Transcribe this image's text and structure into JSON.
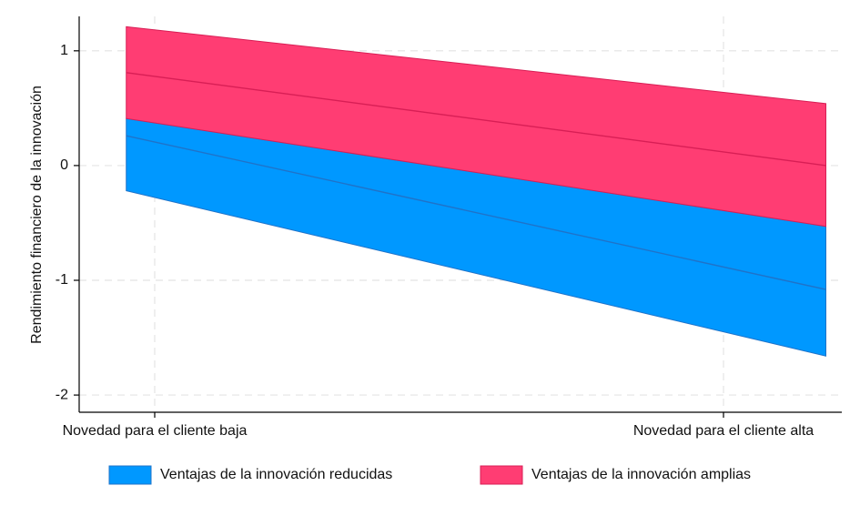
{
  "chart_data": {
    "type": "area",
    "xlabel": "",
    "ylabel": "Rendimiento  financiero de la innovación",
    "x_categories": [
      "Novedad para el cliente baja",
      "Novedad para el cliente alta"
    ],
    "ylim": [
      -2.15,
      1.3
    ],
    "yticks": [
      1,
      0,
      -1,
      -2
    ],
    "ytick_labels": [
      "1",
      "0",
      "-1",
      "-2"
    ],
    "grid": true,
    "legend_position": "bottom",
    "series": [
      {
        "name": "Ventajas de la innovación reducidas",
        "color": "#0098ff",
        "line_color": "#1f73c9",
        "points": [
          {
            "x": "Novedad para el cliente baja",
            "x_pos": -0.05,
            "mean": 0.26,
            "lower": -0.22,
            "upper": 0.41
          },
          {
            "x": "Novedad para el cliente alta",
            "x_pos": 1.18,
            "mean": -1.08,
            "lower": -1.66,
            "upper": -0.53
          }
        ]
      },
      {
        "name": "Ventajas de la innovación amplias",
        "color": "#ff3d73",
        "line_color": "#d81e55",
        "points": [
          {
            "x": "Novedad para el cliente baja",
            "x_pos": -0.05,
            "mean": 0.81,
            "lower": 0.41,
            "upper": 1.21
          },
          {
            "x": "Novedad para el cliente alta",
            "x_pos": 1.18,
            "mean": 0.0,
            "lower": -0.53,
            "upper": 0.54
          }
        ]
      }
    ]
  }
}
